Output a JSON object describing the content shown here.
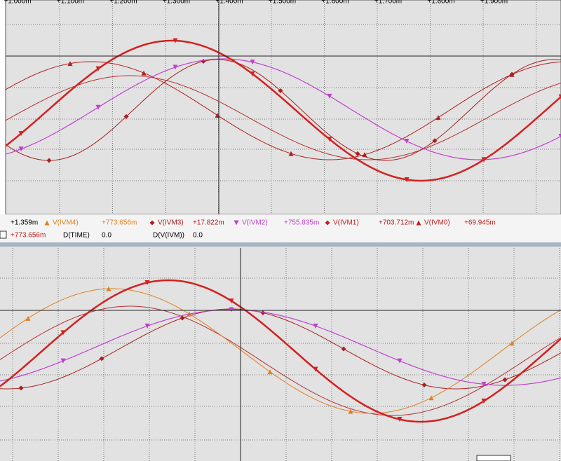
{
  "top_axis": {
    "labels": [
      "+1.000m",
      "+1.100m",
      "+1.200m",
      "+1.300m",
      "+1.400m",
      "+1.500m",
      "+1.600m",
      "+1.700m",
      "+1.800m",
      "+1.900m"
    ]
  },
  "readout": {
    "row1": [
      "+1.359m",
      "V(IVM4)",
      "+773.656m",
      "V(IVM3)",
      "+17.822m",
      "V(IVM2)",
      "+755.835m",
      "V(IVM1)",
      "+703.712m",
      "V(IVM0)",
      "+69.945m"
    ],
    "row2": [
      "+773.656m",
      "D(TIME)",
      "0.0",
      "D(V(IVM))",
      "0.0"
    ]
  }
}
